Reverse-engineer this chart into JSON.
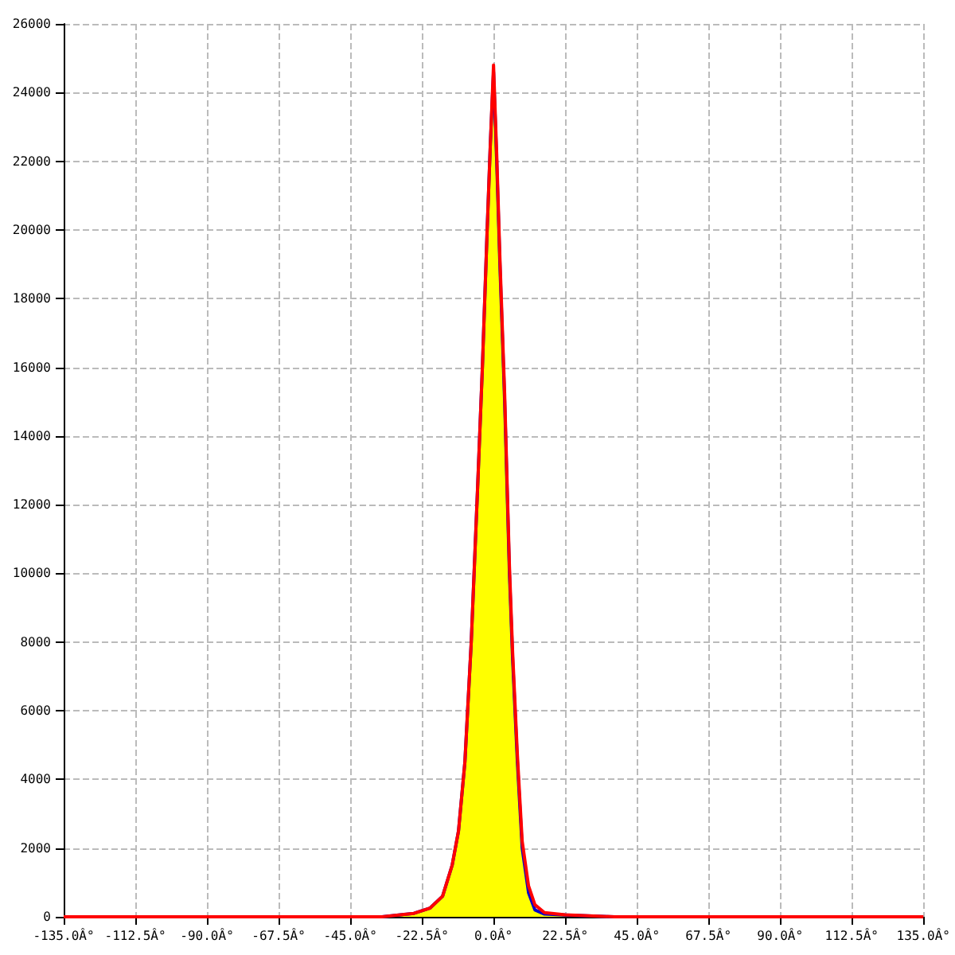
{
  "chart_data": {
    "type": "area",
    "xlim": [
      -135,
      135
    ],
    "ylim": [
      0,
      26000
    ],
    "xticks": [
      {
        "value": -135,
        "label": "-135.0Â°"
      },
      {
        "value": -112.5,
        "label": "-112.5Â°"
      },
      {
        "value": -90,
        "label": "-90.0Â°"
      },
      {
        "value": -67.5,
        "label": "-67.5Â°"
      },
      {
        "value": -45,
        "label": "-45.0Â°"
      },
      {
        "value": -22.5,
        "label": "-22.5Â°"
      },
      {
        "value": 0,
        "label": "0.0Â°"
      },
      {
        "value": 22.5,
        "label": "22.5Â°"
      },
      {
        "value": 45,
        "label": "45.0Â°"
      },
      {
        "value": 67.5,
        "label": "67.5Â°"
      },
      {
        "value": 90,
        "label": "90.0Â°"
      },
      {
        "value": 112.5,
        "label": "112.5Â°"
      },
      {
        "value": 135,
        "label": "135.0Â°"
      }
    ],
    "yticks": [
      0,
      2000,
      4000,
      6000,
      8000,
      10000,
      12000,
      14000,
      16000,
      18000,
      20000,
      22000,
      24000,
      26000
    ],
    "grid": true,
    "series": [
      {
        "color": "#ffff00",
        "x": [
          -35,
          -25,
          -20,
          -16,
          -13,
          -11,
          -9,
          -7,
          -5,
          -3.5,
          -2,
          -1,
          0,
          1,
          2,
          3.5,
          5,
          6,
          7.5,
          9,
          11,
          13,
          16,
          22.5,
          38
        ],
        "values": [
          0,
          100,
          250,
          600,
          1500,
          2500,
          4500,
          8000,
          12500,
          16000,
          20000,
          22500,
          24600,
          22000,
          19000,
          15000,
          10000,
          7500,
          4500,
          2000,
          700,
          200,
          80,
          50,
          0
        ]
      },
      {
        "type": "line",
        "color": "#ff0000",
        "x": [
          -135,
          -35,
          -25,
          -20,
          -16,
          -13,
          -11,
          -9,
          -7,
          -5,
          -3.5,
          -2,
          -1,
          0,
          1,
          2,
          3.5,
          5,
          6,
          7.5,
          9,
          11,
          13,
          16,
          22.5,
          38,
          135
        ],
        "values": [
          0,
          0,
          100,
          250,
          600,
          1500,
          2500,
          4500,
          8000,
          12500,
          16000,
          20000,
          22500,
          24800,
          22200,
          19200,
          15200,
          10200,
          7700,
          4700,
          2200,
          900,
          350,
          120,
          60,
          0,
          0
        ]
      }
    ]
  }
}
